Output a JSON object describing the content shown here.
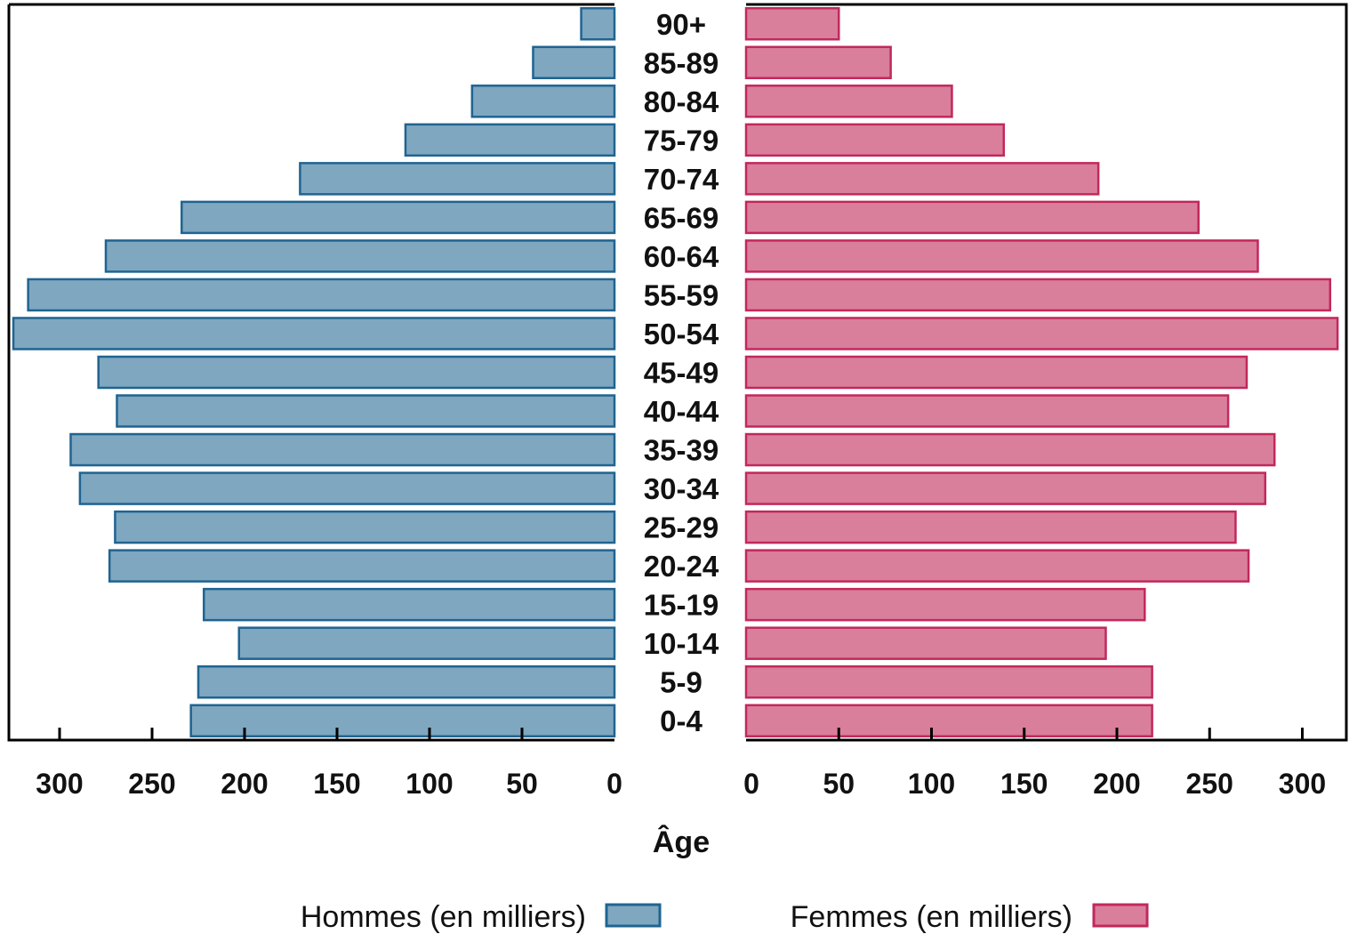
{
  "chart_data": {
    "type": "bar",
    "orientation": "horizontal",
    "layout": "population-pyramid",
    "categories": [
      "0-4",
      "5-9",
      "10-14",
      "15-19",
      "20-24",
      "25-29",
      "30-34",
      "35-39",
      "40-44",
      "45-49",
      "50-54",
      "55-59",
      "60-64",
      "65-69",
      "70-74",
      "75-79",
      "80-84",
      "85-89",
      "90+"
    ],
    "series": [
      {
        "name": "Hommes (en milliers)",
        "side": "left",
        "color": "#7fa7c0",
        "stroke": "#1f6491",
        "values": [
          229,
          225,
          203,
          222,
          273,
          270,
          289,
          294,
          269,
          279,
          325,
          317,
          275,
          234,
          170,
          113,
          77,
          44,
          18
        ]
      },
      {
        "name": "Femmes (en milliers)",
        "side": "right",
        "color": "#d97f9b",
        "stroke": "#c2285c",
        "values": [
          219,
          219,
          194,
          215,
          271,
          264,
          280,
          285,
          260,
          270,
          319,
          315,
          276,
          244,
          190,
          139,
          111,
          78,
          50
        ]
      }
    ],
    "xlabel": "Âge",
    "xlim": [
      0,
      320
    ],
    "xticks": [
      0,
      50,
      100,
      150,
      200,
      250,
      300
    ],
    "xtick_labels": [
      "0",
      "50",
      "100",
      "150",
      "200",
      "250",
      "300"
    ],
    "legend": "bottom-center",
    "grid": false
  }
}
